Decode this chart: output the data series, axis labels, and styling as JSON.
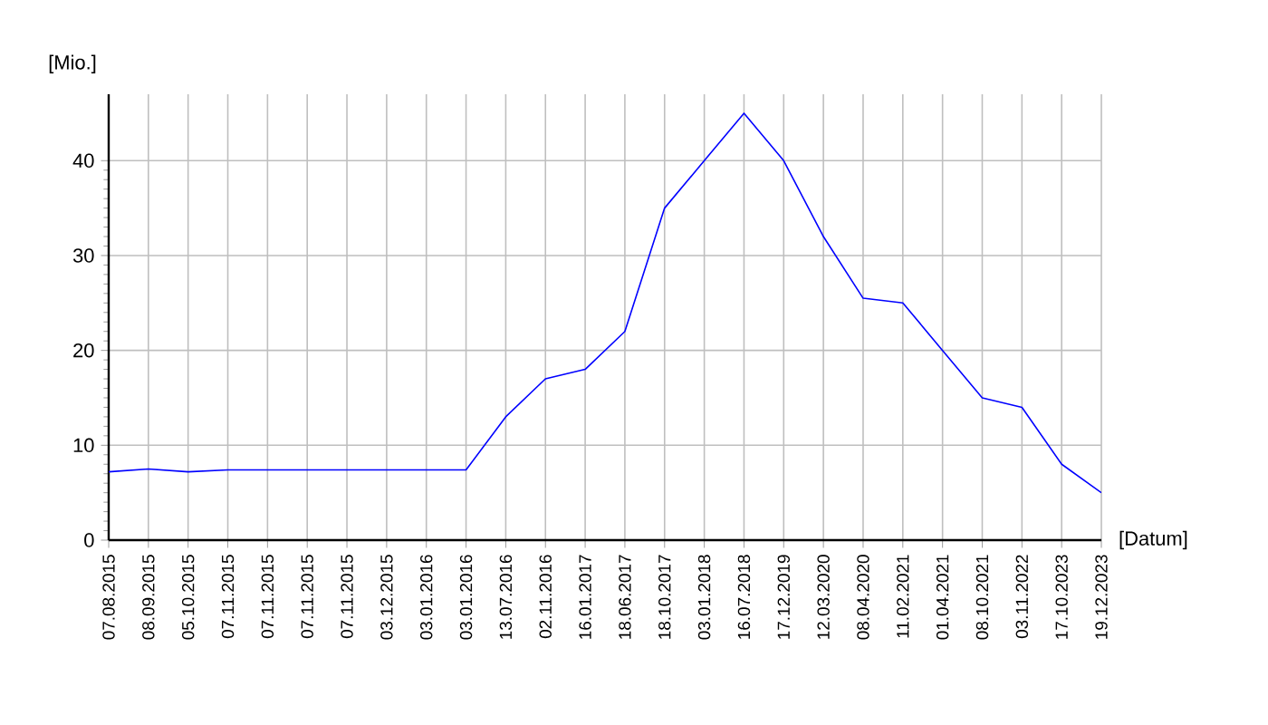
{
  "chart_data": {
    "type": "line",
    "xlabel": "[Datum]",
    "ylabel": "[Mio.]",
    "categories": [
      "07.08.2015",
      "08.09.2015",
      "05.10.2015",
      "07.11.2015",
      "07.11.2015",
      "07.11.2015",
      "07.11.2015",
      "03.12.2015",
      "03.01.2016",
      "03.01.2016",
      "13.07.2016",
      "02.11.2016",
      "16.01.2017",
      "18.06.2017",
      "18.10.2017",
      "03.01.2018",
      "16.07.2018",
      "17.12.2019",
      "12.03.2020",
      "08.04.2020",
      "11.02.2021",
      "01.04.2021",
      "08.10.2021",
      "03.11.2022",
      "17.10.2023",
      "19.12.2023"
    ],
    "values": [
      7.2,
      7.5,
      7.2,
      7.4,
      7.4,
      7.4,
      7.4,
      7.4,
      7.4,
      7.4,
      13,
      17,
      18,
      22,
      35,
      40,
      45,
      40,
      32,
      25.5,
      25,
      20,
      15,
      14,
      8,
      5
    ],
    "color": "#0000ff",
    "ylim": [
      0,
      47
    ],
    "yticks": [
      0,
      10,
      20,
      30,
      40
    ],
    "grid": true
  }
}
